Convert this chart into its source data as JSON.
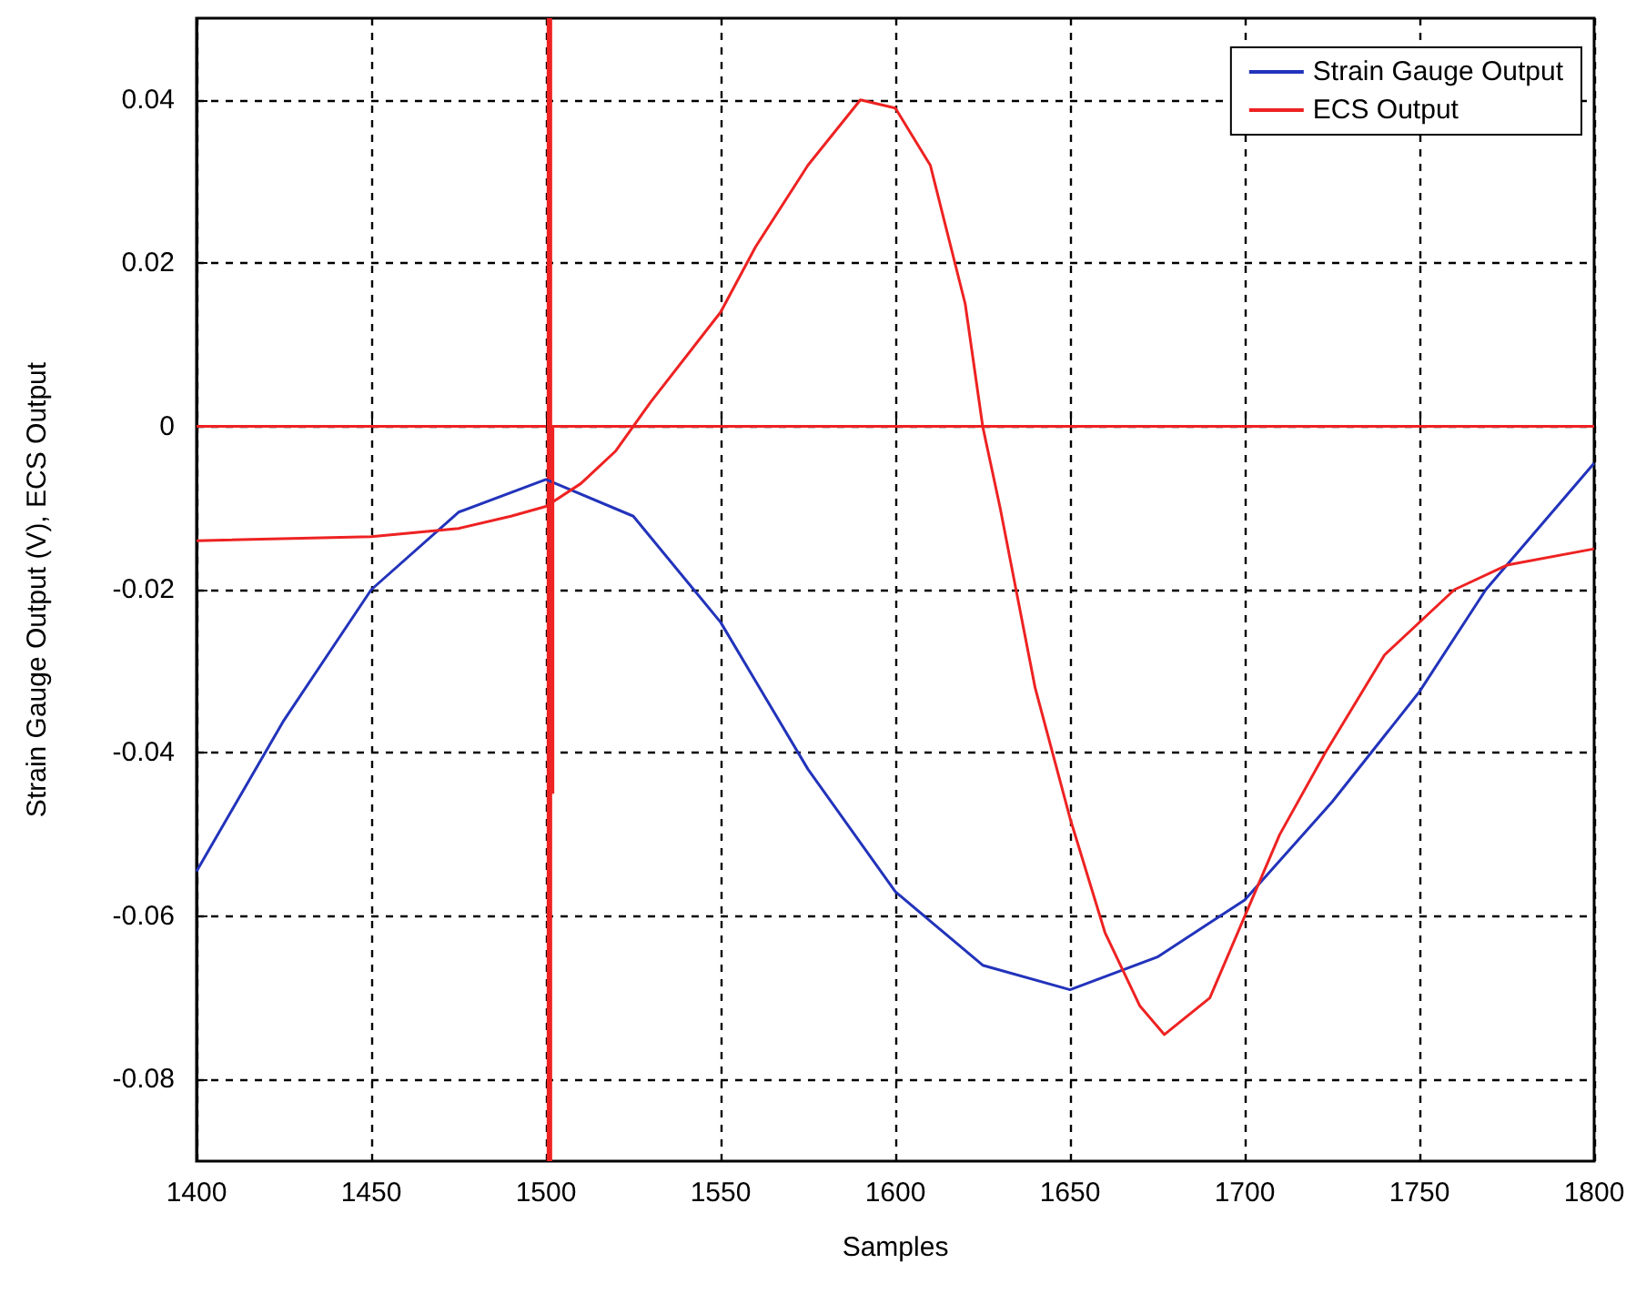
{
  "chart_data": {
    "type": "line",
    "xlabel": "Samples",
    "ylabel": "Strain Gauge Output (V), ECS Output",
    "xlim": [
      1400,
      1800
    ],
    "xticks": [
      1400,
      1450,
      1500,
      1550,
      1600,
      1650,
      1700,
      1750,
      1800
    ],
    "ylim": [
      -0.09,
      0.05
    ],
    "yticks": [
      -0.08,
      -0.06,
      -0.04,
      -0.02,
      0,
      0.02,
      0.04
    ],
    "grid": true,
    "legend": "top right",
    "marker": "none",
    "line_style": "solid",
    "series": [
      {
        "name": "Strain Gauge Output",
        "color": "#2233bb",
        "x": [
          1400,
          1425,
          1450,
          1475,
          1500,
          1525,
          1550,
          1575,
          1600,
          1625,
          1650,
          1675,
          1700,
          1725,
          1750,
          1769,
          1775,
          1800
        ],
        "values": [
          -0.0545,
          -0.036,
          -0.02,
          -0.0105,
          -0.0065,
          -0.011,
          -0.024,
          -0.042,
          -0.057,
          -0.066,
          -0.069,
          -0.065,
          -0.058,
          -0.046,
          -0.0325,
          -0.02,
          -0.017,
          -0.0045
        ]
      },
      {
        "name": "ECS Output",
        "color": "#ee2222",
        "x": [
          1400,
          1450,
          1475,
          1490,
          1500,
          1510,
          1520,
          1530,
          1550,
          1560,
          1575,
          1590,
          1600,
          1610,
          1620,
          1625,
          1630,
          1635,
          1640,
          1650,
          1660,
          1670,
          1677,
          1690,
          1700,
          1710,
          1723,
          1740,
          1760,
          1775,
          1800
        ],
        "values": [
          -0.014,
          -0.0135,
          -0.0125,
          -0.011,
          -0.0098,
          -0.007,
          -0.003,
          0.003,
          0.014,
          0.022,
          0.032,
          0.04,
          0.039,
          0.032,
          0.015,
          0.0,
          -0.01,
          -0.021,
          -0.032,
          -0.048,
          -0.062,
          -0.071,
          -0.0745,
          -0.07,
          -0.06,
          -0.05,
          -0.04,
          -0.028,
          -0.02,
          -0.017,
          -0.015
        ]
      },
      {
        "color": "#ee2222",
        "x": [
          1400,
          1500,
          1501,
          1502,
          1502,
          1800
        ],
        "values": [
          0,
          0,
          null,
          -0.045,
          0,
          0
        ]
      }
    ],
    "ref_lines": [
      {
        "axis": "x",
        "value": 1501,
        "color": "#ee2222"
      }
    ]
  }
}
